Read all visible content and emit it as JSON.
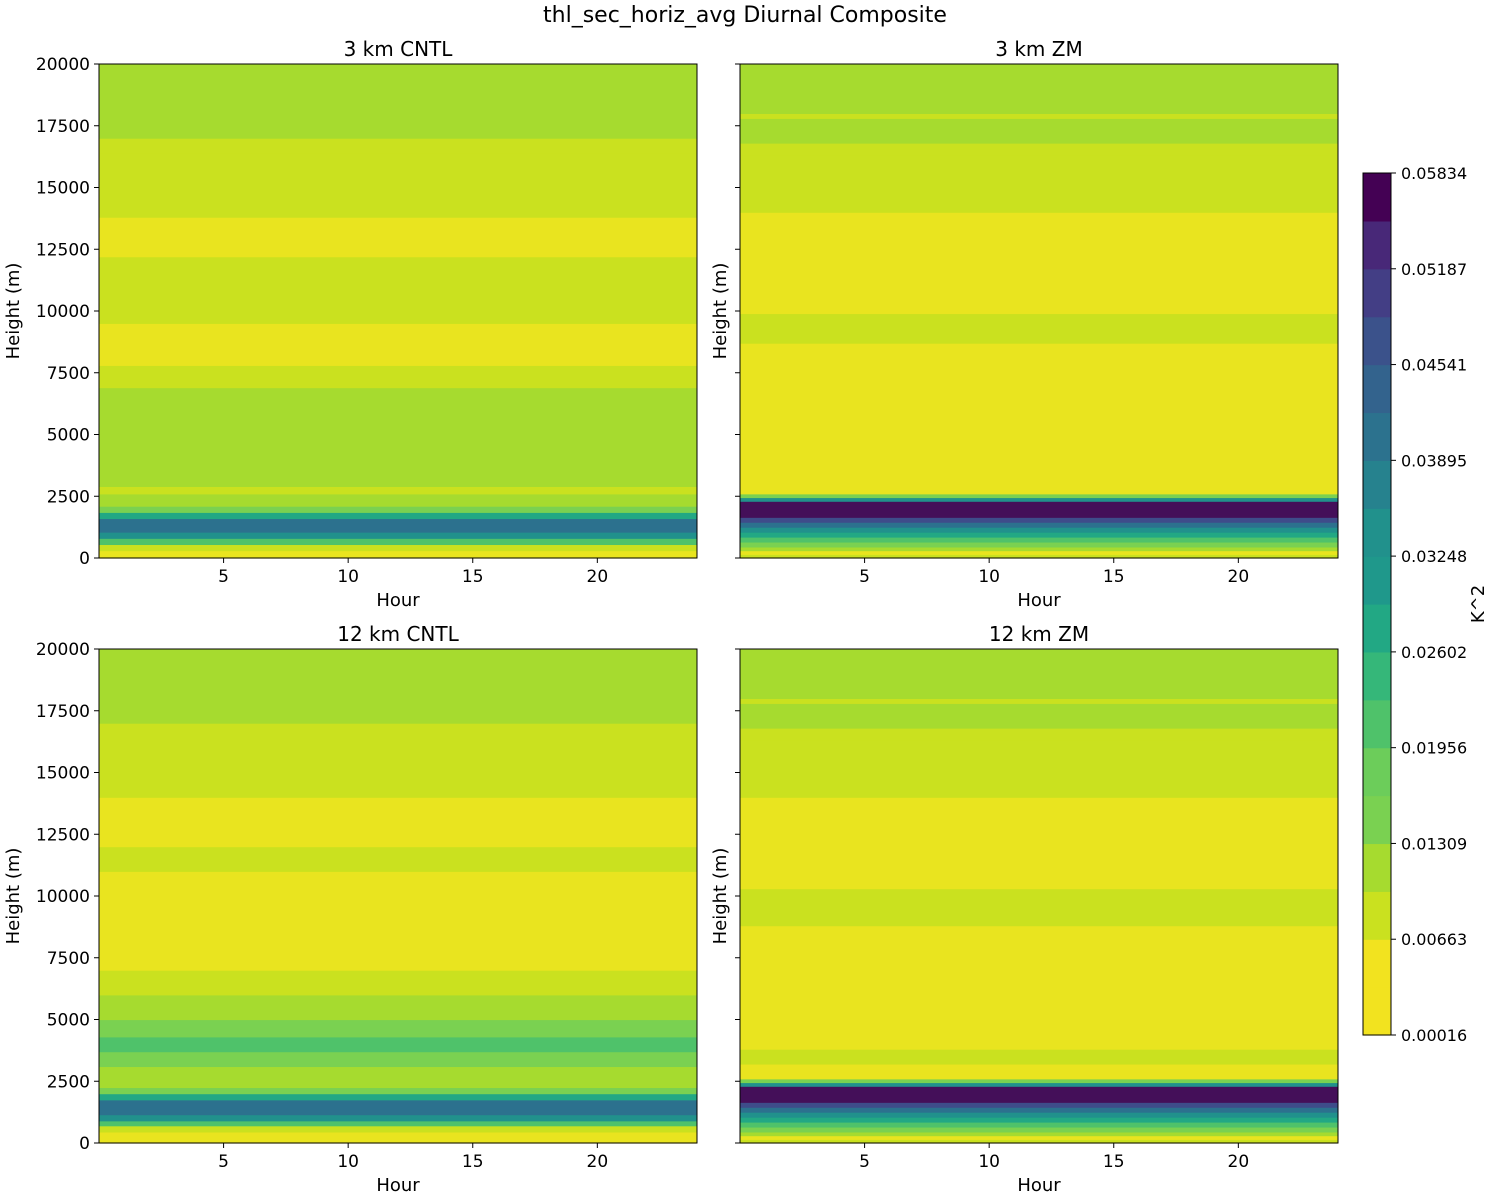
{
  "figure": {
    "title": "thl_sec_horiz_avg Diurnal Composite",
    "colorbar": {
      "label": "K^2",
      "tick_labels": [
        "0.00016",
        "0.00663",
        "0.01309",
        "0.01956",
        "0.02602",
        "0.03248",
        "0.03895",
        "0.04541",
        "0.05187",
        "0.05834"
      ]
    }
  },
  "chart_data": [
    {
      "type": "heatmap",
      "title": "3 km CNTL",
      "xlabel": "Hour",
      "ylabel": "Height (m)",
      "xlim": [
        0,
        24
      ],
      "ylim": [
        0,
        20000
      ],
      "xticks": [
        5,
        10,
        15,
        20
      ],
      "yticks": [
        0,
        2500,
        5000,
        7500,
        10000,
        12500,
        15000,
        17500,
        20000
      ],
      "layers": [
        {
          "z0": 0,
          "z1": 300,
          "level": 0
        },
        {
          "z0": 300,
          "z1": 550,
          "level": 1
        },
        {
          "z0": 550,
          "z1": 800,
          "level": 4
        },
        {
          "z0": 800,
          "z1": 1050,
          "level": 6
        },
        {
          "z0": 1050,
          "z1": 1600,
          "level": 7
        },
        {
          "z0": 1600,
          "z1": 1850,
          "level": 5
        },
        {
          "z0": 1850,
          "z1": 2100,
          "level": 3
        },
        {
          "z0": 2100,
          "z1": 2600,
          "level": 2
        },
        {
          "z0": 2600,
          "z1": 2900,
          "level": 1
        },
        {
          "z0": 2900,
          "z1": 6900,
          "level": 2
        },
        {
          "z0": 6900,
          "z1": 7800,
          "level": 1
        },
        {
          "z0": 7800,
          "z1": 9500,
          "level": 0
        },
        {
          "z0": 9500,
          "z1": 12200,
          "level": 1
        },
        {
          "z0": 12200,
          "z1": 13800,
          "level": 0
        },
        {
          "z0": 13800,
          "z1": 16400,
          "level": 1
        },
        {
          "z0": 16400,
          "z1": 17000,
          "level": 1
        },
        {
          "z0": 17000,
          "z1": 20000,
          "level": 2
        }
      ]
    },
    {
      "type": "heatmap",
      "title": "3 km ZM",
      "xlabel": "Hour",
      "ylabel": "Height (m)",
      "xlim": [
        0,
        24
      ],
      "ylim": [
        0,
        20000
      ],
      "xticks": [
        5,
        10,
        15,
        20
      ],
      "yticks": [
        0,
        2500,
        5000,
        7500,
        10000,
        12500,
        15000,
        17500,
        20000
      ],
      "layers": [
        {
          "z0": 0,
          "z1": 150,
          "level": 1
        },
        {
          "z0": 150,
          "z1": 300,
          "level": 0
        },
        {
          "z0": 300,
          "z1": 450,
          "level": 2
        },
        {
          "z0": 450,
          "z1": 650,
          "level": 3
        },
        {
          "z0": 650,
          "z1": 850,
          "level": 4
        },
        {
          "z0": 850,
          "z1": 1050,
          "level": 5
        },
        {
          "z0": 1050,
          "z1": 1250,
          "level": 6
        },
        {
          "z0": 1250,
          "z1": 1450,
          "level": 7
        },
        {
          "z0": 1450,
          "z1": 1650,
          "level": 8
        },
        {
          "z0": 1650,
          "z1": 2300,
          "level": 9
        },
        {
          "z0": 2300,
          "z1": 2450,
          "level": 6
        },
        {
          "z0": 2450,
          "z1": 2600,
          "level": 3
        },
        {
          "z0": 2600,
          "z1": 8700,
          "level": 0
        },
        {
          "z0": 8700,
          "z1": 9900,
          "level": 1
        },
        {
          "z0": 9900,
          "z1": 14000,
          "level": 0
        },
        {
          "z0": 14000,
          "z1": 16300,
          "level": 1
        },
        {
          "z0": 16300,
          "z1": 16800,
          "level": 1
        },
        {
          "z0": 16800,
          "z1": 17800,
          "level": 2
        },
        {
          "z0": 17800,
          "z1": 18000,
          "level": 1
        },
        {
          "z0": 18000,
          "z1": 20000,
          "level": 2
        }
      ]
    },
    {
      "type": "heatmap",
      "title": "12 km CNTL",
      "xlabel": "Hour",
      "ylabel": "Height (m)",
      "xlim": [
        0,
        24
      ],
      "ylim": [
        0,
        20000
      ],
      "xticks": [
        5,
        10,
        15,
        20
      ],
      "yticks": [
        0,
        2500,
        5000,
        7500,
        10000,
        12500,
        15000,
        17500,
        20000
      ],
      "layers": [
        {
          "z0": 0,
          "z1": 450,
          "level": 0
        },
        {
          "z0": 450,
          "z1": 700,
          "level": 1
        },
        {
          "z0": 700,
          "z1": 900,
          "level": 4
        },
        {
          "z0": 900,
          "z1": 1150,
          "level": 6
        },
        {
          "z0": 1150,
          "z1": 1750,
          "level": 7
        },
        {
          "z0": 1750,
          "z1": 2000,
          "level": 5
        },
        {
          "z0": 2000,
          "z1": 2250,
          "level": 3
        },
        {
          "z0": 2250,
          "z1": 3100,
          "level": 2
        },
        {
          "z0": 3100,
          "z1": 3700,
          "level": 3
        },
        {
          "z0": 3700,
          "z1": 4300,
          "level": 4
        },
        {
          "z0": 4300,
          "z1": 5000,
          "level": 3
        },
        {
          "z0": 5000,
          "z1": 6000,
          "level": 2
        },
        {
          "z0": 6000,
          "z1": 7000,
          "level": 1
        },
        {
          "z0": 7000,
          "z1": 11000,
          "level": 0
        },
        {
          "z0": 11000,
          "z1": 12000,
          "level": 1
        },
        {
          "z0": 12000,
          "z1": 14000,
          "level": 0
        },
        {
          "z0": 14000,
          "z1": 17000,
          "level": 1
        },
        {
          "z0": 17000,
          "z1": 20000,
          "level": 2
        }
      ]
    },
    {
      "type": "heatmap",
      "title": "12 km ZM",
      "xlabel": "Hour",
      "ylabel": "Height (m)",
      "xlim": [
        0,
        24
      ],
      "ylim": [
        0,
        20000
      ],
      "xticks": [
        5,
        10,
        15,
        20
      ],
      "yticks": [
        0,
        2500,
        5000,
        7500,
        10000,
        12500,
        15000,
        17500,
        20000
      ],
      "layers": [
        {
          "z0": 0,
          "z1": 150,
          "level": 1
        },
        {
          "z0": 150,
          "z1": 300,
          "level": 0
        },
        {
          "z0": 300,
          "z1": 450,
          "level": 2
        },
        {
          "z0": 450,
          "z1": 650,
          "level": 3
        },
        {
          "z0": 650,
          "z1": 850,
          "level": 4
        },
        {
          "z0": 850,
          "z1": 1050,
          "level": 5
        },
        {
          "z0": 1050,
          "z1": 1250,
          "level": 6
        },
        {
          "z0": 1250,
          "z1": 1450,
          "level": 7
        },
        {
          "z0": 1450,
          "z1": 1650,
          "level": 8
        },
        {
          "z0": 1650,
          "z1": 2300,
          "level": 9
        },
        {
          "z0": 2300,
          "z1": 2450,
          "level": 6
        },
        {
          "z0": 2450,
          "z1": 2600,
          "level": 3
        },
        {
          "z0": 2600,
          "z1": 3200,
          "level": 0
        },
        {
          "z0": 3200,
          "z1": 3800,
          "level": 1
        },
        {
          "z0": 3800,
          "z1": 8800,
          "level": 0
        },
        {
          "z0": 8800,
          "z1": 10300,
          "level": 1
        },
        {
          "z0": 10300,
          "z1": 14000,
          "level": 0
        },
        {
          "z0": 14000,
          "z1": 16300,
          "level": 1
        },
        {
          "z0": 16300,
          "z1": 16800,
          "level": 1
        },
        {
          "z0": 16800,
          "z1": 17800,
          "level": 2
        },
        {
          "z0": 17800,
          "z1": 18000,
          "level": 1
        },
        {
          "z0": 18000,
          "z1": 20000,
          "level": 2
        }
      ]
    }
  ]
}
